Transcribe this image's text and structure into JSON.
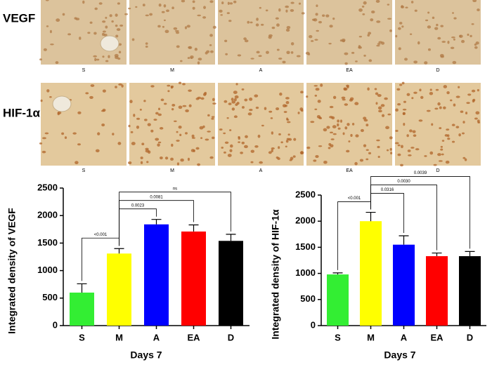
{
  "image_panels": {
    "rows": [
      {
        "label": "VEGF",
        "captions": [
          "S",
          "M",
          "A",
          "EA",
          "D"
        ]
      },
      {
        "label": "HIF-1α",
        "captions": [
          "S",
          "M",
          "A",
          "EA",
          "D"
        ]
      }
    ]
  },
  "chart_data": [
    {
      "type": "bar",
      "y_label": "Integrated density of VEGF",
      "x_label": "Days 7",
      "categories": [
        "S",
        "M",
        "A",
        "EA",
        "D"
      ],
      "values": [
        600,
        1310,
        1840,
        1710,
        1540
      ],
      "errors": [
        160,
        90,
        90,
        120,
        120
      ],
      "colors": [
        "#33ee33",
        "#ffff00",
        "#0000ff",
        "#ff0000",
        "#000000"
      ],
      "ylim": [
        0,
        2500
      ],
      "yticks": [
        0,
        500,
        1000,
        1500,
        2000,
        2500
      ],
      "annotations": [
        {
          "from": "S",
          "to": "M",
          "text": "<0.001"
        },
        {
          "from": "M",
          "to": "A",
          "text": "0.0023"
        },
        {
          "from": "M",
          "to": "EA",
          "text": "0.0081"
        },
        {
          "from": "M",
          "to": "D",
          "text": "ns"
        }
      ]
    },
    {
      "type": "bar",
      "y_label": "Integrated density of HIF-1α",
      "x_label": "Days 7",
      "categories": [
        "S",
        "M",
        "A",
        "EA",
        "D"
      ],
      "values": [
        980,
        2000,
        1550,
        1330,
        1330
      ],
      "errors": [
        30,
        170,
        170,
        60,
        90
      ],
      "colors": [
        "#33ee33",
        "#ffff00",
        "#0000ff",
        "#ff0000",
        "#000000"
      ],
      "ylim": [
        0,
        2500
      ],
      "yticks": [
        0,
        500,
        1000,
        1500,
        2000,
        2500
      ],
      "annotations": [
        {
          "from": "S",
          "to": "M",
          "text": "<0.001"
        },
        {
          "from": "M",
          "to": "A",
          "text": "0.0316"
        },
        {
          "from": "M",
          "to": "EA",
          "text": "0.0030"
        },
        {
          "from": "M",
          "to": "D",
          "text": "0.0039"
        }
      ]
    }
  ]
}
